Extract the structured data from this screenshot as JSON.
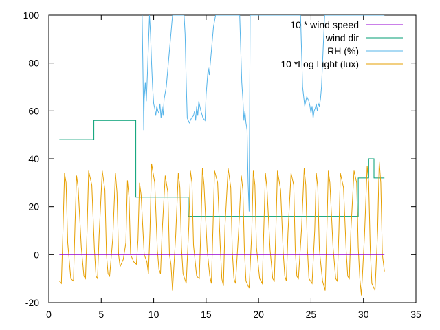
{
  "chart_data": {
    "type": "line",
    "xlim": [
      0,
      35
    ],
    "ylim": [
      -20,
      100
    ],
    "x_ticks": [
      "0",
      "5",
      "10",
      "15",
      "20",
      "25",
      "30",
      "35"
    ],
    "y_ticks": [
      "-20",
      "0",
      "20",
      "40",
      "60",
      "80",
      "100"
    ],
    "grid": false,
    "legend_position": "top-right",
    "series": [
      {
        "name": "10 * wind speed",
        "color": "#9400d3",
        "style": "line",
        "x": [
          1.0,
          32.0
        ],
        "y": [
          0,
          0
        ]
      },
      {
        "name": "wind dir",
        "color": "#009e73",
        "style": "step",
        "x": [
          1.0,
          4.3,
          4.3,
          8.3,
          8.3,
          13.3,
          13.3,
          29.5,
          29.5,
          30.5,
          30.5,
          31.0,
          31.0,
          32.0
        ],
        "y": [
          48,
          48,
          56,
          56,
          24,
          24,
          16,
          16,
          32,
          32,
          40,
          40,
          32,
          32
        ]
      },
      {
        "name": "RH (%)",
        "color": "#56b4e9",
        "style": "line",
        "x": [
          8.9,
          9.0,
          9.05,
          9.1,
          9.2,
          9.3,
          9.4,
          9.6,
          9.7,
          9.8,
          9.9,
          10.0,
          10.1,
          10.2,
          10.3,
          10.4,
          10.5,
          10.6,
          10.7,
          10.8,
          10.9,
          11.0,
          11.2,
          11.4,
          11.6,
          11.8,
          12.0,
          12.3,
          12.6,
          12.9,
          13.0,
          13.1,
          13.2,
          13.4,
          13.6,
          13.8,
          13.9,
          14.0,
          14.1,
          14.2,
          14.3,
          14.5,
          14.7,
          14.9,
          15.0,
          15.2,
          15.3,
          15.5,
          15.7,
          15.9,
          16.0,
          16.2,
          16.4,
          16.6,
          16.8,
          17.0,
          17.2,
          17.5,
          17.8,
          18.0,
          18.2,
          18.4,
          18.5,
          18.6,
          18.7,
          18.8,
          18.9,
          19.0,
          19.1,
          19.2,
          19.3,
          19.4,
          19.6,
          19.8,
          20.0,
          20.2,
          20.4,
          20.6,
          20.8,
          21.0,
          21.5,
          22.0,
          22.5,
          23.0,
          23.5,
          24.0,
          24.2,
          24.4,
          24.6,
          24.8,
          24.9,
          25.0,
          25.1,
          25.2,
          25.3,
          25.4,
          25.5,
          25.6,
          25.7,
          25.8,
          25.9,
          26.0,
          26.1,
          26.2,
          26.3,
          26.4,
          26.5,
          26.8,
          27.0,
          27.5,
          28.0,
          28.5,
          29.0,
          29.5,
          30.0,
          30.5,
          31.0,
          31.5,
          32.0
        ],
        "y": [
          100,
          70,
          52,
          65,
          72,
          64,
          75,
          100,
          92,
          80,
          70,
          63,
          61,
          58,
          62,
          60,
          59,
          63,
          57,
          62,
          58,
          65,
          70,
          80,
          90,
          100,
          100,
          100,
          100,
          100,
          92,
          72,
          57,
          55,
          57,
          58,
          60,
          56,
          62,
          58,
          64,
          60,
          57,
          56,
          67,
          78,
          75,
          85,
          95,
          100,
          100,
          100,
          100,
          100,
          100,
          100,
          100,
          100,
          100,
          100,
          100,
          72,
          65,
          56,
          60,
          55,
          52,
          30,
          18,
          100,
          100,
          100,
          100,
          100,
          100,
          100,
          100,
          100,
          100,
          100,
          100,
          100,
          100,
          100,
          100,
          100,
          70,
          62,
          66,
          64,
          62,
          59,
          62,
          57,
          60,
          61,
          63,
          60,
          63,
          62,
          65,
          70,
          80,
          90,
          100,
          100,
          100,
          100,
          100,
          100,
          100,
          100,
          100,
          100,
          100,
          100,
          100,
          100,
          100
        ]
      },
      {
        "name": "10 *Log Light (lux)",
        "color": "#e69f00",
        "style": "line",
        "x": [
          1.0,
          1.2,
          1.35,
          1.5,
          1.65,
          1.8,
          2.1,
          2.35,
          2.5,
          2.65,
          2.8,
          3.1,
          3.35,
          3.5,
          3.65,
          3.8,
          4.1,
          4.35,
          4.5,
          4.65,
          4.8,
          5.1,
          5.35,
          5.5,
          5.65,
          5.8,
          6.1,
          6.35,
          6.5,
          6.65,
          6.8,
          7.1,
          7.35,
          7.5,
          7.65,
          7.8,
          8.1,
          8.35,
          8.5,
          8.65,
          8.8,
          9.1,
          9.35,
          9.5,
          9.65,
          9.8,
          10.1,
          10.35,
          10.5,
          10.65,
          10.8,
          11.1,
          11.35,
          11.5,
          11.65,
          11.8,
          12.1,
          12.35,
          12.5,
          12.65,
          12.8,
          13.1,
          13.35,
          13.5,
          13.65,
          13.8,
          14.1,
          14.35,
          14.5,
          14.65,
          14.8,
          15.1,
          15.35,
          15.5,
          15.65,
          15.8,
          16.1,
          16.35,
          16.5,
          16.65,
          16.8,
          17.1,
          17.35,
          17.5,
          17.65,
          17.8,
          18.1,
          18.35,
          18.5,
          18.65,
          18.8,
          19.1,
          19.35,
          19.5,
          19.65,
          19.8,
          20.1,
          20.35,
          20.5,
          20.65,
          20.8,
          21.1,
          21.35,
          21.5,
          21.65,
          21.8,
          22.1,
          22.35,
          22.5,
          22.65,
          22.8,
          23.1,
          23.35,
          23.5,
          23.65,
          23.8,
          24.1,
          24.35,
          24.5,
          24.65,
          24.8,
          25.1,
          25.35,
          25.5,
          25.65,
          25.8,
          26.1,
          26.35,
          26.5,
          26.65,
          26.8,
          27.1,
          27.35,
          27.5,
          27.65,
          27.8,
          28.1,
          28.35,
          28.5,
          28.65,
          28.8,
          29.1,
          29.35,
          29.5,
          29.65,
          29.8,
          30.1,
          30.35,
          30.5,
          30.65,
          30.8,
          31.1,
          31.35,
          31.5,
          31.65,
          31.8,
          32.0
        ],
        "y": [
          -11,
          -12,
          10,
          34,
          30,
          5,
          -10,
          -11,
          12,
          33,
          28,
          3,
          -9,
          -10,
          10,
          35,
          29,
          2,
          -9,
          -10,
          8,
          35,
          27,
          0,
          -8,
          -9,
          7,
          34,
          26,
          0,
          -5,
          -2,
          5,
          31,
          24,
          0,
          -3,
          -4,
          6,
          30,
          25,
          0,
          -3,
          -8,
          10,
          38,
          30,
          2,
          -6,
          -8,
          9,
          33,
          26,
          0,
          -4,
          -15,
          8,
          34,
          28,
          3,
          -8,
          -12,
          12,
          35,
          30,
          4,
          -9,
          -10,
          10,
          36,
          29,
          2,
          -9,
          -12,
          11,
          35,
          30,
          3,
          -10,
          -13,
          12,
          36,
          28,
          1,
          -10,
          -12,
          10,
          33,
          27,
          2,
          -11,
          -14,
          9,
          35,
          29,
          3,
          -10,
          -12,
          11,
          34,
          28,
          2,
          -10,
          -11,
          10,
          35,
          27,
          1,
          -9,
          -11,
          9,
          34,
          29,
          2,
          -9,
          -10,
          11,
          36,
          29,
          3,
          -10,
          -12,
          10,
          34,
          28,
          2,
          -11,
          -15,
          8,
          35,
          30,
          3,
          -10,
          -11,
          9,
          34,
          28,
          2,
          -9,
          -10,
          10,
          35,
          30,
          3,
          -10,
          -17,
          8,
          37,
          30,
          2,
          -12,
          -15,
          10,
          39,
          30,
          0,
          -7
        ]
      }
    ]
  }
}
